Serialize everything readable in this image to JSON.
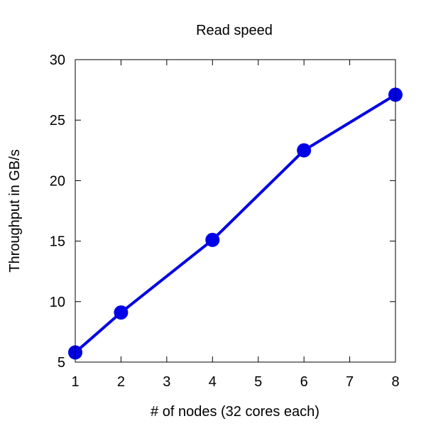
{
  "chart_data": {
    "type": "line",
    "title": "Read speed",
    "xlabel": "# of nodes (32 cores each)",
    "ylabel": "Throughput in GB/s",
    "xlim": [
      1,
      8
    ],
    "ylim": [
      5,
      30
    ],
    "xticks": [
      1,
      2,
      3,
      4,
      5,
      6,
      7,
      8
    ],
    "yticks": [
      5,
      10,
      15,
      20,
      25,
      30
    ],
    "grid": false,
    "legend": "none",
    "series": [
      {
        "x": [
          1,
          2,
          4,
          6,
          8
        ],
        "y": [
          5.8,
          9.1,
          15.1,
          22.5,
          27.1
        ],
        "color": "#0000e6",
        "marker": "circle"
      }
    ]
  }
}
